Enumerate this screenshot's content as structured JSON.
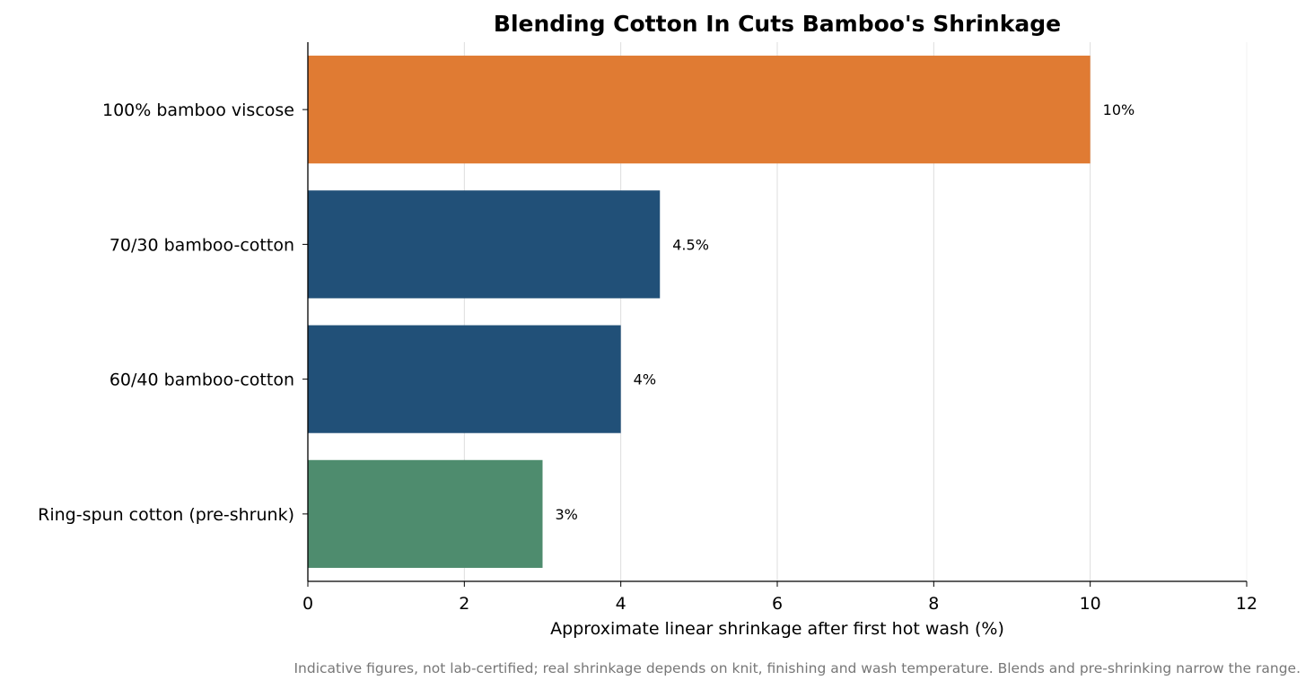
{
  "chart_data": {
    "type": "bar",
    "orientation": "horizontal",
    "title": "Blending Cotton In Cuts Bamboo's Shrinkage",
    "xlabel": "Approximate linear shrinkage after first hot wash (%)",
    "ylabel": "",
    "categories": [
      "100% bamboo viscose",
      "70/30 bamboo-cotton",
      "60/40 bamboo-cotton",
      "Ring-spun cotton (pre-shrunk)"
    ],
    "values": [
      10,
      4.5,
      4,
      3
    ],
    "data_labels": [
      "10%",
      "4.5%",
      "4%",
      "3%"
    ],
    "bar_colors": [
      "#e07b33",
      "#215078",
      "#215078",
      "#4e8c6e"
    ],
    "xlim": [
      0,
      12
    ],
    "xticks": [
      0,
      2,
      4,
      6,
      8,
      10,
      12
    ],
    "grid": "vertical",
    "legend": "none",
    "footnote": "Indicative figures, not lab-certified; real shrinkage depends on knit, finishing and wash temperature. Blends and pre-shrinking narrow the range."
  }
}
